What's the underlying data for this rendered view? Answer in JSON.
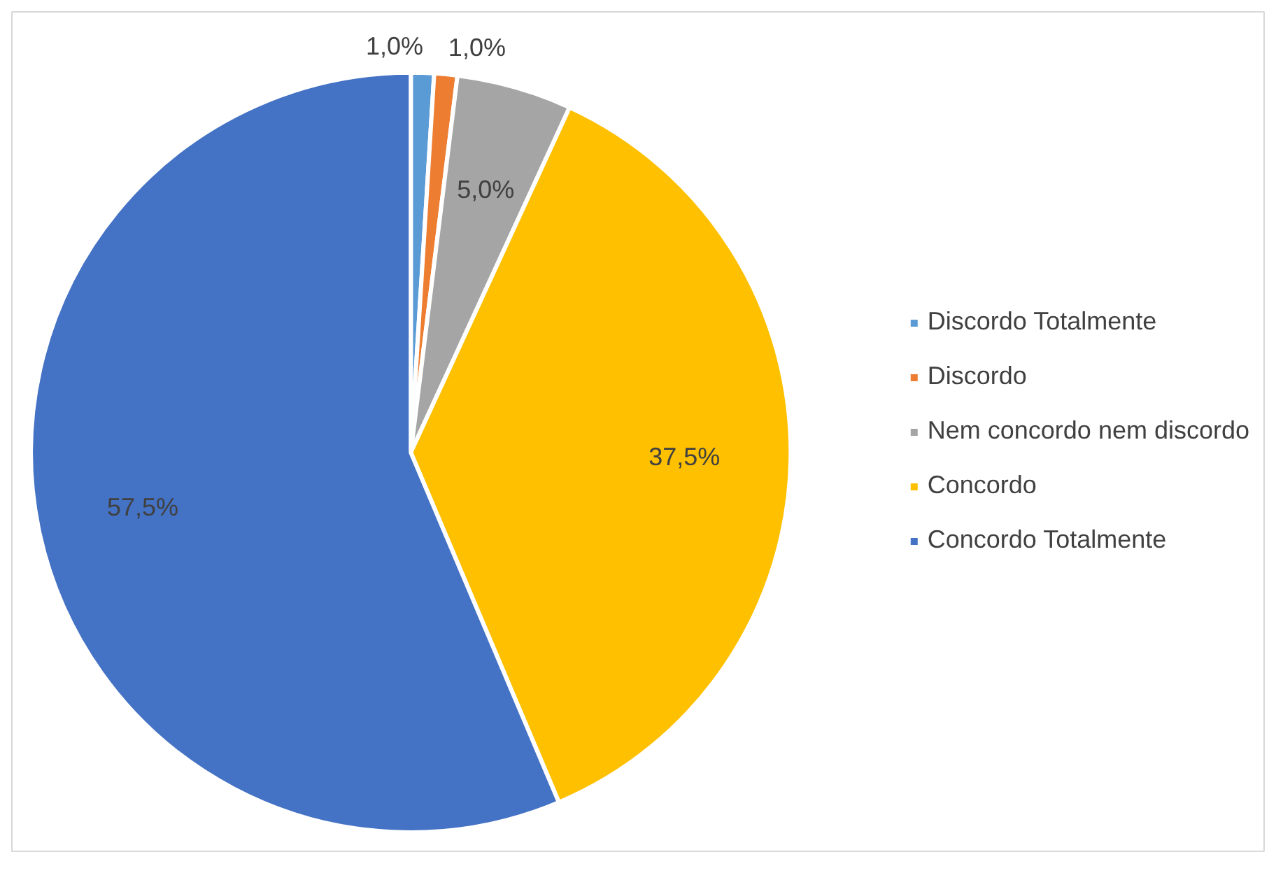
{
  "chart_data": {
    "type": "pie",
    "categories": [
      "Discordo Totalmente",
      "Discordo",
      "Nem concordo nem discordo",
      "Concordo",
      "Concordo Totalmente"
    ],
    "values": [
      1.0,
      1.0,
      5.0,
      37.5,
      57.5
    ],
    "value_labels": [
      "1,0%",
      "1,0%",
      "5,0%",
      "37,5%",
      "57,5%"
    ],
    "colors": [
      "#5b9bd5",
      "#ed7d31",
      "#a5a5a5",
      "#ffc000",
      "#4472c4"
    ],
    "legend": "right"
  }
}
